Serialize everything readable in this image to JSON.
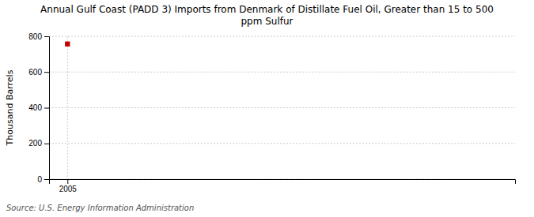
{
  "chart_data": {
    "type": "scatter",
    "title": "Annual Gulf Coast (PADD 3) Imports from Denmark of Distillate Fuel Oil, Greater than 15 to 500\nppm Sulfur",
    "y_label": "Thousand Barrels",
    "annotations": [
      "Source: U.S. Energy Information Administration"
    ],
    "x": [
      2005
    ],
    "values": [
      757
    ],
    "color": "#c00000",
    "marker": "square",
    "xlim": [
      2004.3,
      2022
    ],
    "xticks": [
      2005
    ],
    "ylim": [
      0,
      800
    ],
    "yticks": [
      0,
      200,
      400,
      600,
      800
    ],
    "grid": true
  }
}
